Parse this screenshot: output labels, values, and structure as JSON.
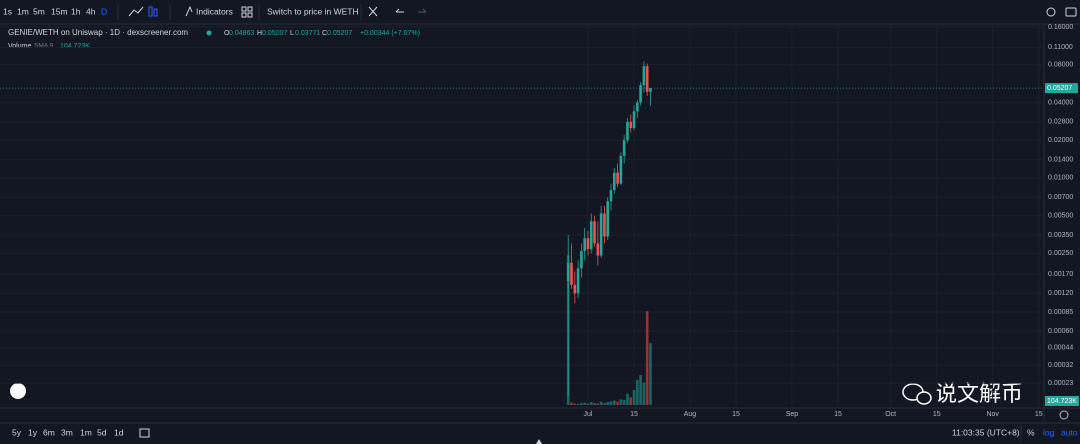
{
  "toolbar": {
    "intervals": [
      "1s",
      "1m",
      "5m",
      "15m",
      "1h",
      "4h",
      "D"
    ],
    "indicators": "Indicators",
    "switch": "Switch to price in WETH"
  },
  "legend": {
    "symbol": "GENIE/WETH on Uniswap · 1D · dexscreener.com",
    "ohlc_labels": [
      "O",
      "H",
      "L",
      "C"
    ],
    "change": "+0.00344 (+7.07%)",
    "volume": "Volume",
    "sma": "SMA 9",
    "sma_value": {
      "value": 104723,
      "label": "104.723K"
    }
  },
  "chart_data": {
    "type": "candlestick",
    "log_scale": true,
    "grid": true,
    "up_color": "#26a69a",
    "down_color": "#ef5350",
    "x": [
      -6,
      -5,
      -4,
      -3,
      -2,
      -1,
      0,
      1,
      2,
      3,
      4,
      5,
      6,
      7,
      8,
      9,
      10,
      11,
      12,
      13,
      14,
      15,
      16,
      17,
      18,
      19
    ],
    "open": [
      0.0015,
      0.0021,
      0.0014,
      0.0012,
      0.0019,
      0.0026,
      0.0033,
      0.0027,
      0.0045,
      0.003,
      0.0024,
      0.0052,
      0.0034,
      0.0065,
      0.008,
      0.011,
      0.009,
      0.015,
      0.02,
      0.028,
      0.025,
      0.034,
      0.04,
      0.055,
      0.078,
      0.04863
    ],
    "high": [
      0.0035,
      0.003,
      0.0018,
      0.0022,
      0.003,
      0.004,
      0.0038,
      0.0052,
      0.005,
      0.0045,
      0.006,
      0.006,
      0.007,
      0.009,
      0.012,
      0.013,
      0.016,
      0.022,
      0.03,
      0.032,
      0.038,
      0.042,
      0.058,
      0.085,
      0.082,
      0.05207
    ],
    "low": [
      0.00018,
      0.0013,
      0.001,
      0.0011,
      0.0016,
      0.0022,
      0.0024,
      0.0025,
      0.0028,
      0.002,
      0.0023,
      0.003,
      0.0032,
      0.0055,
      0.0075,
      0.0085,
      0.0088,
      0.013,
      0.019,
      0.023,
      0.024,
      0.03,
      0.038,
      0.048,
      0.045,
      0.03771
    ],
    "close": [
      0.0021,
      0.0014,
      0.0012,
      0.0019,
      0.0026,
      0.0033,
      0.0027,
      0.0045,
      0.003,
      0.0024,
      0.0052,
      0.0034,
      0.0065,
      0.008,
      0.011,
      0.009,
      0.015,
      0.02,
      0.028,
      0.025,
      0.034,
      0.04,
      0.055,
      0.078,
      0.04863,
      0.05207
    ],
    "volume": [
      400000,
      6000,
      4000,
      3000,
      5000,
      6000,
      4000,
      8000,
      5000,
      4000,
      9000,
      5000,
      8000,
      10000,
      12000,
      9000,
      15000,
      14000,
      30000,
      20000,
      40000,
      67000,
      80000,
      60000,
      250000,
      165000
    ],
    "volume_ylim": [
      0,
      400000
    ],
    "ylim": [
      0.000154,
      0.182
    ],
    "yticks": [
      {
        "value": 0.16,
        "label": "0.16000"
      },
      {
        "value": 0.11,
        "label": "0.11000"
      },
      {
        "value": 0.08,
        "label": "0.08000"
      },
      {
        "value": 0.04,
        "label": "0.04000"
      },
      {
        "value": 0.028,
        "label": "0.02800"
      },
      {
        "value": 0.02,
        "label": "0.02000"
      },
      {
        "value": 0.014,
        "label": "0.01400"
      },
      {
        "value": 0.01,
        "label": "0.01000"
      },
      {
        "value": 0.007,
        "label": "0.00700"
      },
      {
        "value": 0.005,
        "label": "0.00500"
      },
      {
        "value": 0.0035,
        "label": "0.00350"
      },
      {
        "value": 0.0025,
        "label": "0.00250"
      },
      {
        "value": 0.0017,
        "label": "0.00170"
      },
      {
        "value": 0.0012,
        "label": "0.00120"
      },
      {
        "value": 0.00085,
        "label": "0.00085"
      },
      {
        "value": 0.0006,
        "label": "0.00060"
      },
      {
        "value": 0.00044,
        "label": "0.00044"
      },
      {
        "value": 0.00032,
        "label": "0.00032"
      },
      {
        "value": 0.00023,
        "label": "0.00023"
      }
    ],
    "xlim": [
      -178.7,
      138.6
    ],
    "xticks": [
      {
        "value": 0,
        "label": "Jul"
      },
      {
        "value": 14,
        "label": "15"
      },
      {
        "value": 31,
        "label": "Aug"
      },
      {
        "value": 45,
        "label": "15"
      },
      {
        "value": 62,
        "label": "Sep"
      },
      {
        "value": 76,
        "label": "15"
      },
      {
        "value": 92,
        "label": "Oct"
      },
      {
        "value": 106,
        "label": "15"
      },
      {
        "value": 123,
        "label": "Nov"
      },
      {
        "value": 137,
        "label": "15"
      }
    ]
  },
  "bottom": {
    "ranges": [
      "5y",
      "1y",
      "6m",
      "3m",
      "1m",
      "5d",
      "1d"
    ],
    "time": "11:03:35 (UTC+8)",
    "scale_options": [
      "%",
      "log",
      "auto"
    ]
  },
  "watermark": "说文解币"
}
